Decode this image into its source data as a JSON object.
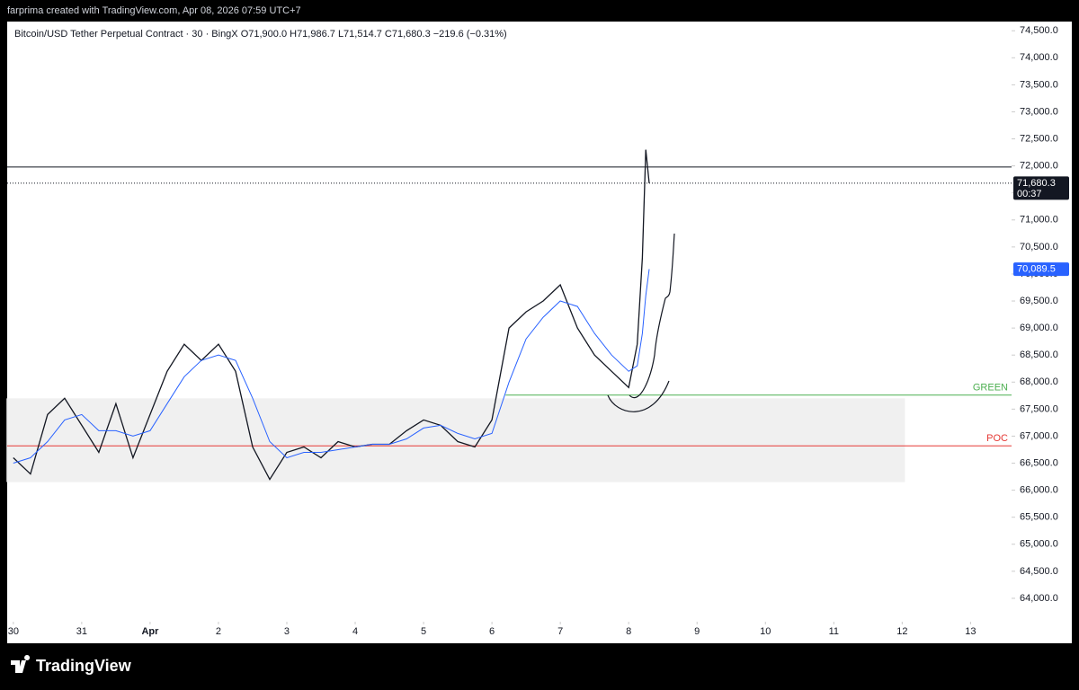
{
  "header": {
    "credit": "farprima created with TradingView.com, Apr 08, 2026 07:59 UTC+7"
  },
  "footer": {
    "brand": "TradingView"
  },
  "chart_data": {
    "type": "line",
    "title": "Bitcoin/USD Tether Perpetual Contract · 30 · BingX  O71,900.0  H71,986.7  L71,514.7  C71,680.3  −219.6 (−0.31%)",
    "x": [
      0,
      0.25,
      0.5,
      0.75,
      1,
      1.25,
      1.5,
      1.75,
      2,
      2.25,
      2.5,
      2.75,
      3,
      3.25,
      3.5,
      3.75,
      4,
      4.25,
      4.5,
      4.75,
      5,
      5.25,
      5.5,
      5.75,
      6,
      6.25,
      6.5,
      6.75,
      7,
      7.25,
      7.5,
      7.75,
      8,
      8.25,
      8.5,
      8.75,
      9,
      9.125,
      9.2,
      9.25,
      9.3
    ],
    "series": [
      {
        "color": "#131722",
        "values": [
          66600,
          66300,
          67400,
          67700,
          67200,
          66700,
          67600,
          66600,
          67400,
          68200,
          68700,
          68400,
          68700,
          68200,
          66800,
          66200,
          66700,
          66800,
          66600,
          66900,
          66800,
          66850,
          66850,
          67100,
          67300,
          67200,
          66900,
          66800,
          67300,
          69000,
          69300,
          69500,
          69800,
          69000,
          68500,
          68200,
          67900,
          68700,
          70300,
          72300,
          71680.3
        ]
      },
      {
        "color": "#2962ff",
        "values": [
          66500,
          66600,
          66900,
          67300,
          67400,
          67100,
          67100,
          67000,
          67100,
          67600,
          68100,
          68400,
          68500,
          68400,
          67700,
          66900,
          66600,
          66700,
          66700,
          66750,
          66800,
          66850,
          66850,
          66950,
          67150,
          67200,
          67050,
          66950,
          67050,
          68000,
          68800,
          69200,
          69500,
          69400,
          68900,
          68500,
          68200,
          68300,
          68900,
          69600,
          70089.5
        ]
      }
    ],
    "xlim": [
      -0.09,
      14.6
    ],
    "xticks": [
      {
        "value": 0,
        "label": "30"
      },
      {
        "value": 1,
        "label": "31"
      },
      {
        "value": 2,
        "label": "Apr"
      },
      {
        "value": 3,
        "label": "2"
      },
      {
        "value": 4,
        "label": "3"
      },
      {
        "value": 5,
        "label": "4"
      },
      {
        "value": 6,
        "label": "5"
      },
      {
        "value": 7,
        "label": "6"
      },
      {
        "value": 8,
        "label": "7"
      },
      {
        "value": 9,
        "label": "8"
      },
      {
        "value": 10,
        "label": "9"
      },
      {
        "value": 11,
        "label": "10"
      },
      {
        "value": 12,
        "label": "11"
      },
      {
        "value": 13,
        "label": "12"
      },
      {
        "value": 14,
        "label": "13"
      }
    ],
    "ylim": [
      63600,
      74670
    ],
    "yticks": [
      {
        "value": 64000,
        "label": "64,000.0"
      },
      {
        "value": 64500,
        "label": "64,500.0"
      },
      {
        "value": 65000,
        "label": "65,000.0"
      },
      {
        "value": 65500,
        "label": "65,500.0"
      },
      {
        "value": 66000,
        "label": "66,000.0"
      },
      {
        "value": 66500,
        "label": "66,500.0"
      },
      {
        "value": 67000,
        "label": "67,000.0"
      },
      {
        "value": 67500,
        "label": "67,500.0"
      },
      {
        "value": 68000,
        "label": "68,000.0"
      },
      {
        "value": 68500,
        "label": "68,500.0"
      },
      {
        "value": 69000,
        "label": "69,000.0"
      },
      {
        "value": 69500,
        "label": "69,500.0"
      },
      {
        "value": 70000,
        "label": "70,000.0"
      },
      {
        "value": 70500,
        "label": "70,500.0"
      },
      {
        "value": 71000,
        "label": "71,000.0"
      },
      {
        "value": 71500,
        "label": "71,500.0"
      },
      {
        "value": 72000,
        "label": "72,000.0"
      },
      {
        "value": 72500,
        "label": "72,500.0"
      },
      {
        "value": 73000,
        "label": "73,000.0"
      },
      {
        "value": 73500,
        "label": "73,500.0"
      },
      {
        "value": 74000,
        "label": "74,000.0"
      },
      {
        "value": 74500,
        "label": "74,500.0"
      }
    ],
    "grid": false,
    "zone": {
      "x": [
        -0.1,
        13.04
      ],
      "y": [
        66150,
        67700
      ],
      "color": "#f0f0f0"
    },
    "levels": [
      {
        "value": 71980,
        "color": "#131722"
      },
      {
        "name": "GREEN",
        "value": 67760,
        "color": "#4caf50",
        "x0": 7.2
      },
      {
        "name": "POC",
        "value": 66820,
        "color": "#e53935"
      }
    ],
    "price_labels": [
      {
        "value": 71680.3,
        "label": "71,680.3",
        "color": "#131722",
        "sub": "00:37"
      },
      {
        "value": 70089.5,
        "label": "70,089.5",
        "color": "#2962ff"
      }
    ]
  }
}
